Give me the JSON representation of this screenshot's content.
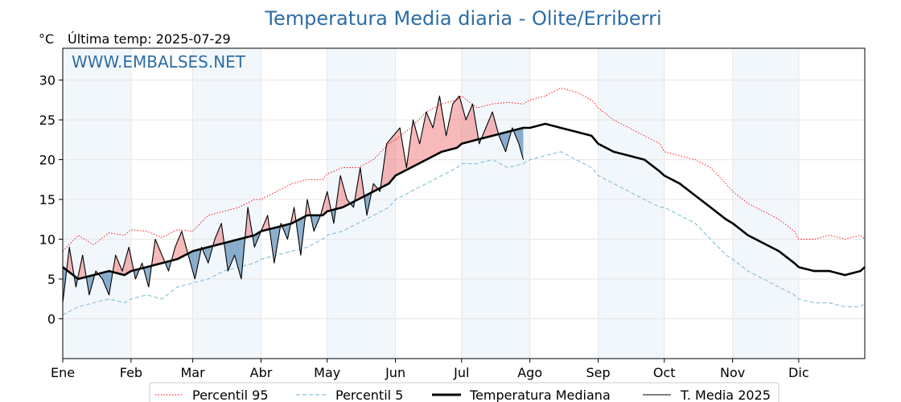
{
  "chart_data": {
    "type": "line",
    "title": "Temperatura Media diaria - Olite/Erriberri",
    "unit_label": "°C",
    "subtitle": "Última temp: 2025-07-29",
    "watermark": "WWW.EMBALSES.NET",
    "x_axis": {
      "type": "day-of-year",
      "range": [
        1,
        365
      ],
      "ticks": [
        {
          "label": "Ene",
          "day": 1
        },
        {
          "label": "Feb",
          "day": 32
        },
        {
          "label": "Mar",
          "day": 60
        },
        {
          "label": "Abr",
          "day": 91
        },
        {
          "label": "May",
          "day": 121
        },
        {
          "label": "Jun",
          "day": 152
        },
        {
          "label": "Jul",
          "day": 182
        },
        {
          "label": "Ago",
          "day": 213
        },
        {
          "label": "Sep",
          "day": 244
        },
        {
          "label": "Oct",
          "day": 274
        },
        {
          "label": "Nov",
          "day": 305
        },
        {
          "label": "Dic",
          "day": 335
        }
      ],
      "shaded_months": [
        "Ene",
        "Mar",
        "May",
        "Jul",
        "Sep",
        "Nov"
      ]
    },
    "y_axis": {
      "range": [
        -5,
        34
      ],
      "ticks": [
        0,
        5,
        10,
        15,
        20,
        25,
        30
      ]
    },
    "grid": true,
    "legend_position": "bottom",
    "last_day": 210,
    "series": [
      {
        "name": "Percentil 95",
        "color": "#ff0000",
        "style": "dotted",
        "x": [
          1,
          8,
          15,
          22,
          29,
          32,
          39,
          46,
          53,
          60,
          67,
          74,
          81,
          88,
          91,
          98,
          105,
          112,
          119,
          121,
          128,
          135,
          142,
          149,
          152,
          159,
          166,
          173,
          180,
          182,
          189,
          196,
          203,
          210,
          213,
          220,
          227,
          234,
          241,
          244,
          251,
          258,
          265,
          272,
          274,
          281,
          288,
          295,
          302,
          305,
          312,
          319,
          326,
          333,
          335,
          342,
          349,
          356,
          363,
          365
        ],
        "y": [
          8.5,
          10.5,
          9.3,
          10.8,
          10.5,
          11.2,
          11.0,
          10.2,
          11.2,
          11.0,
          13.0,
          13.5,
          14.0,
          15.0,
          15.0,
          16.0,
          17.0,
          17.5,
          17.5,
          18.2,
          19.0,
          19.0,
          20.0,
          22.0,
          22.5,
          24.0,
          26.0,
          27.0,
          27.5,
          28.0,
          26.5,
          27.0,
          27.2,
          27.0,
          27.5,
          28.0,
          29.0,
          28.5,
          27.5,
          26.5,
          25.0,
          24.0,
          23.0,
          22.0,
          21.0,
          20.5,
          20.0,
          19.0,
          17.0,
          16.0,
          14.5,
          13.5,
          12.5,
          11.0,
          10.0,
          10.0,
          10.5,
          10.0,
          10.5,
          10.0
        ]
      },
      {
        "name": "Percentil 5",
        "color": "#8ac4d8",
        "style": "dashed",
        "x": [
          1,
          8,
          15,
          22,
          29,
          32,
          39,
          46,
          53,
          60,
          67,
          74,
          81,
          88,
          91,
          98,
          105,
          112,
          119,
          121,
          128,
          135,
          142,
          149,
          152,
          159,
          166,
          173,
          180,
          182,
          189,
          196,
          203,
          210,
          213,
          220,
          227,
          234,
          241,
          244,
          251,
          258,
          265,
          272,
          274,
          281,
          288,
          295,
          302,
          305,
          312,
          319,
          326,
          333,
          335,
          342,
          349,
          356,
          363,
          365
        ],
        "y": [
          0.5,
          1.5,
          2.0,
          2.5,
          2.0,
          2.5,
          3.0,
          2.5,
          4.0,
          4.5,
          5.0,
          6.0,
          6.5,
          7.0,
          7.5,
          8.0,
          8.5,
          9.0,
          10.0,
          10.5,
          11.0,
          12.0,
          13.0,
          14.0,
          15.0,
          16.0,
          17.0,
          18.0,
          19.0,
          19.5,
          19.5,
          20.0,
          19.0,
          19.5,
          20.0,
          20.5,
          21.0,
          20.0,
          19.0,
          18.0,
          17.0,
          16.0,
          15.0,
          14.0,
          14.0,
          13.0,
          12.0,
          10.0,
          8.0,
          7.5,
          6.0,
          5.0,
          4.0,
          3.0,
          2.5,
          2.0,
          2.0,
          1.5,
          1.5,
          2.0
        ]
      },
      {
        "name": "Temperatura Mediana",
        "color": "#000000",
        "style": "thick",
        "x": [
          1,
          8,
          15,
          22,
          29,
          32,
          39,
          46,
          53,
          60,
          67,
          74,
          81,
          88,
          91,
          98,
          105,
          112,
          119,
          121,
          128,
          135,
          142,
          149,
          152,
          159,
          166,
          173,
          180,
          182,
          189,
          196,
          203,
          210,
          213,
          220,
          227,
          234,
          241,
          244,
          251,
          258,
          265,
          272,
          274,
          281,
          288,
          295,
          302,
          305,
          312,
          319,
          326,
          333,
          335,
          342,
          349,
          356,
          363,
          365
        ],
        "y": [
          6.5,
          5.0,
          5.5,
          6.0,
          5.5,
          6.0,
          6.5,
          7.0,
          7.5,
          8.5,
          9.0,
          9.5,
          10.0,
          10.5,
          11.0,
          11.5,
          12.0,
          13.0,
          13.0,
          13.5,
          14.0,
          15.0,
          16.0,
          17.0,
          18.0,
          19.0,
          20.0,
          21.0,
          21.5,
          22.0,
          22.5,
          23.0,
          23.5,
          24.0,
          24.0,
          24.5,
          24.0,
          23.5,
          23.0,
          22.0,
          21.0,
          20.5,
          20.0,
          18.5,
          18.0,
          17.0,
          15.5,
          14.0,
          12.5,
          12.0,
          10.5,
          9.5,
          8.5,
          7.0,
          6.5,
          6.0,
          6.0,
          5.5,
          6.0,
          6.5
        ]
      },
      {
        "name": "T. Media 2025",
        "color": "#000000",
        "style": "thin",
        "x": [
          1,
          4,
          7,
          10,
          13,
          16,
          19,
          22,
          25,
          28,
          31,
          34,
          37,
          40,
          43,
          46,
          49,
          52,
          55,
          58,
          61,
          64,
          67,
          70,
          73,
          76,
          79,
          82,
          85,
          88,
          91,
          94,
          97,
          100,
          103,
          106,
          109,
          112,
          115,
          118,
          121,
          124,
          127,
          130,
          133,
          136,
          139,
          142,
          145,
          148,
          151,
          154,
          157,
          160,
          163,
          166,
          169,
          172,
          175,
          178,
          181,
          184,
          187,
          190,
          193,
          196,
          199,
          202,
          205,
          208,
          210
        ],
        "y": [
          2,
          9,
          4,
          8,
          3,
          6,
          5,
          3,
          8,
          6,
          9,
          5,
          7,
          4,
          10,
          8,
          6,
          9,
          11,
          8,
          5,
          9,
          7,
          10,
          12,
          6,
          8,
          5,
          14,
          9,
          11,
          13,
          7,
          12,
          10,
          14,
          8,
          15,
          11,
          13,
          16,
          12,
          18,
          15,
          14,
          19,
          13,
          17,
          16,
          22,
          23,
          24,
          19,
          25,
          22,
          26,
          24,
          28,
          23,
          27,
          28,
          25,
          27,
          22,
          24,
          26,
          23,
          21,
          24,
          22,
          20
        ]
      }
    ],
    "legend": [
      "Percentil 95",
      "Percentil 5",
      "Temperatura Mediana",
      "T. Media 2025"
    ]
  }
}
